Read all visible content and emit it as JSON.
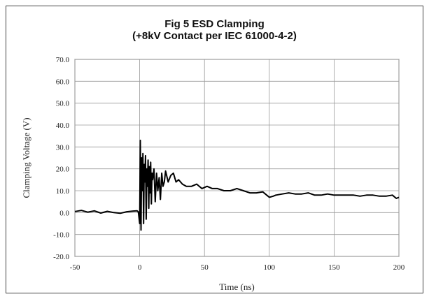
{
  "chart_data": {
    "type": "line",
    "title": "Fig 5 ESD Clamping",
    "subtitle": "(+8kV Contact per IEC 61000-4-2)",
    "xlabel": "Time (ns)",
    "ylabel": "Clamping Voltage (V)",
    "xlim": [
      -50,
      200
    ],
    "ylim": [
      -20,
      70
    ],
    "xticks": [
      -50,
      0,
      50,
      100,
      150,
      200
    ],
    "xtick_labels": [
      "-50",
      "0",
      "50",
      "100",
      "150",
      "200"
    ],
    "yticks": [
      -20,
      -10,
      0,
      10,
      20,
      30,
      40,
      50,
      60,
      70
    ],
    "ytick_labels": [
      "-20.0",
      "-10.0",
      "0.0",
      "10.0",
      "20.0",
      "30.0",
      "40.0",
      "50.0",
      "60.0",
      "70.0"
    ],
    "grid": true,
    "series": [
      {
        "x": [
          -50,
          -45,
          -40,
          -35,
          -30,
          -25,
          -20,
          -15,
          -10,
          -5,
          -2,
          -1,
          0,
          0.5,
          1,
          1.5,
          2,
          2.5,
          3,
          3.5,
          4,
          4.5,
          5,
          5.5,
          6,
          6.5,
          7,
          7.5,
          8,
          8.5,
          9,
          9.5,
          10,
          11,
          12,
          13,
          14,
          15,
          16,
          17,
          18,
          19,
          20,
          22,
          24,
          26,
          28,
          30,
          33,
          36,
          40,
          44,
          48,
          52,
          56,
          60,
          65,
          70,
          75,
          80,
          85,
          90,
          95,
          98,
          100,
          103,
          105,
          110,
          115,
          120,
          125,
          130,
          135,
          140,
          145,
          150,
          155,
          160,
          165,
          170,
          175,
          180,
          185,
          190,
          195,
          198,
          200
        ],
        "values": [
          0.5,
          1.0,
          0.2,
          0.8,
          -0.2,
          0.6,
          0.0,
          -0.3,
          0.4,
          0.7,
          0.8,
          0.3,
          -5,
          33,
          -8,
          25,
          10,
          27,
          -5,
          22,
          14,
          26,
          -3,
          20,
          12,
          24,
          2,
          21,
          9,
          23,
          4,
          18,
          15,
          20,
          5,
          18,
          10,
          16,
          6,
          18,
          12,
          14,
          19,
          14,
          17,
          18,
          14,
          15,
          13,
          12,
          12,
          13,
          11,
          12,
          11,
          11,
          10,
          10,
          11,
          10,
          9,
          9,
          9.5,
          8,
          7,
          7.5,
          8,
          8.5,
          9,
          8.5,
          8.5,
          9,
          8,
          8,
          8.5,
          8,
          8,
          8,
          8,
          7.5,
          8,
          8,
          7.5,
          7.5,
          8,
          6.5,
          7
        ]
      }
    ]
  }
}
